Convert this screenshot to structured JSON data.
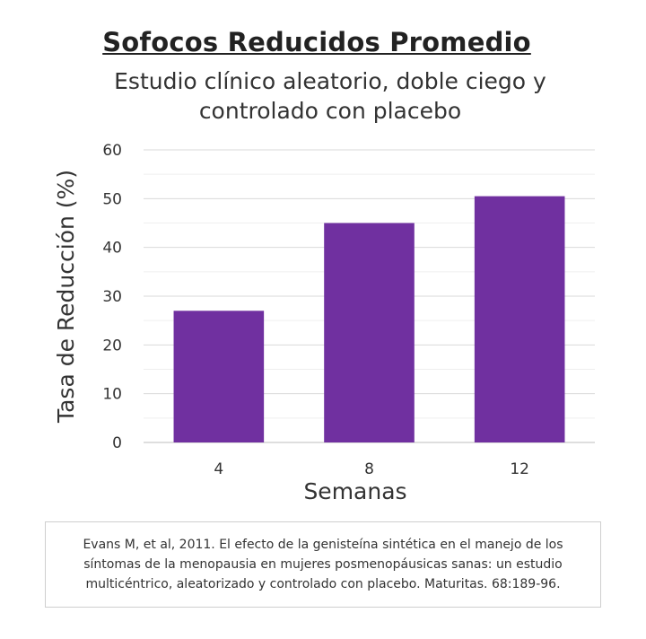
{
  "chart_data": {
    "type": "bar",
    "title": "Sofocos Reducidos Promedio",
    "subtitle": "Estudio clínico aleatorio, doble ciego y controlado con placebo",
    "xlabel": "Semanas",
    "ylabel": "Tasa de Reducción (%)",
    "categories": [
      "4",
      "8",
      "12"
    ],
    "values": [
      27,
      45,
      50.5
    ],
    "ylim": [
      0,
      60
    ],
    "yticks": [
      0,
      10,
      20,
      30,
      40,
      50,
      60
    ],
    "grid": true,
    "bar_color": "#7030a0"
  },
  "citation": "Evans M, et al, 2011. El efecto de la genisteína sintética en el manejo de los síntomas de la menopausia en mujeres posmenopáusicas sanas: un estudio multicéntrico, aleatorizado y controlado con placebo. Maturitas. 68:189-96."
}
